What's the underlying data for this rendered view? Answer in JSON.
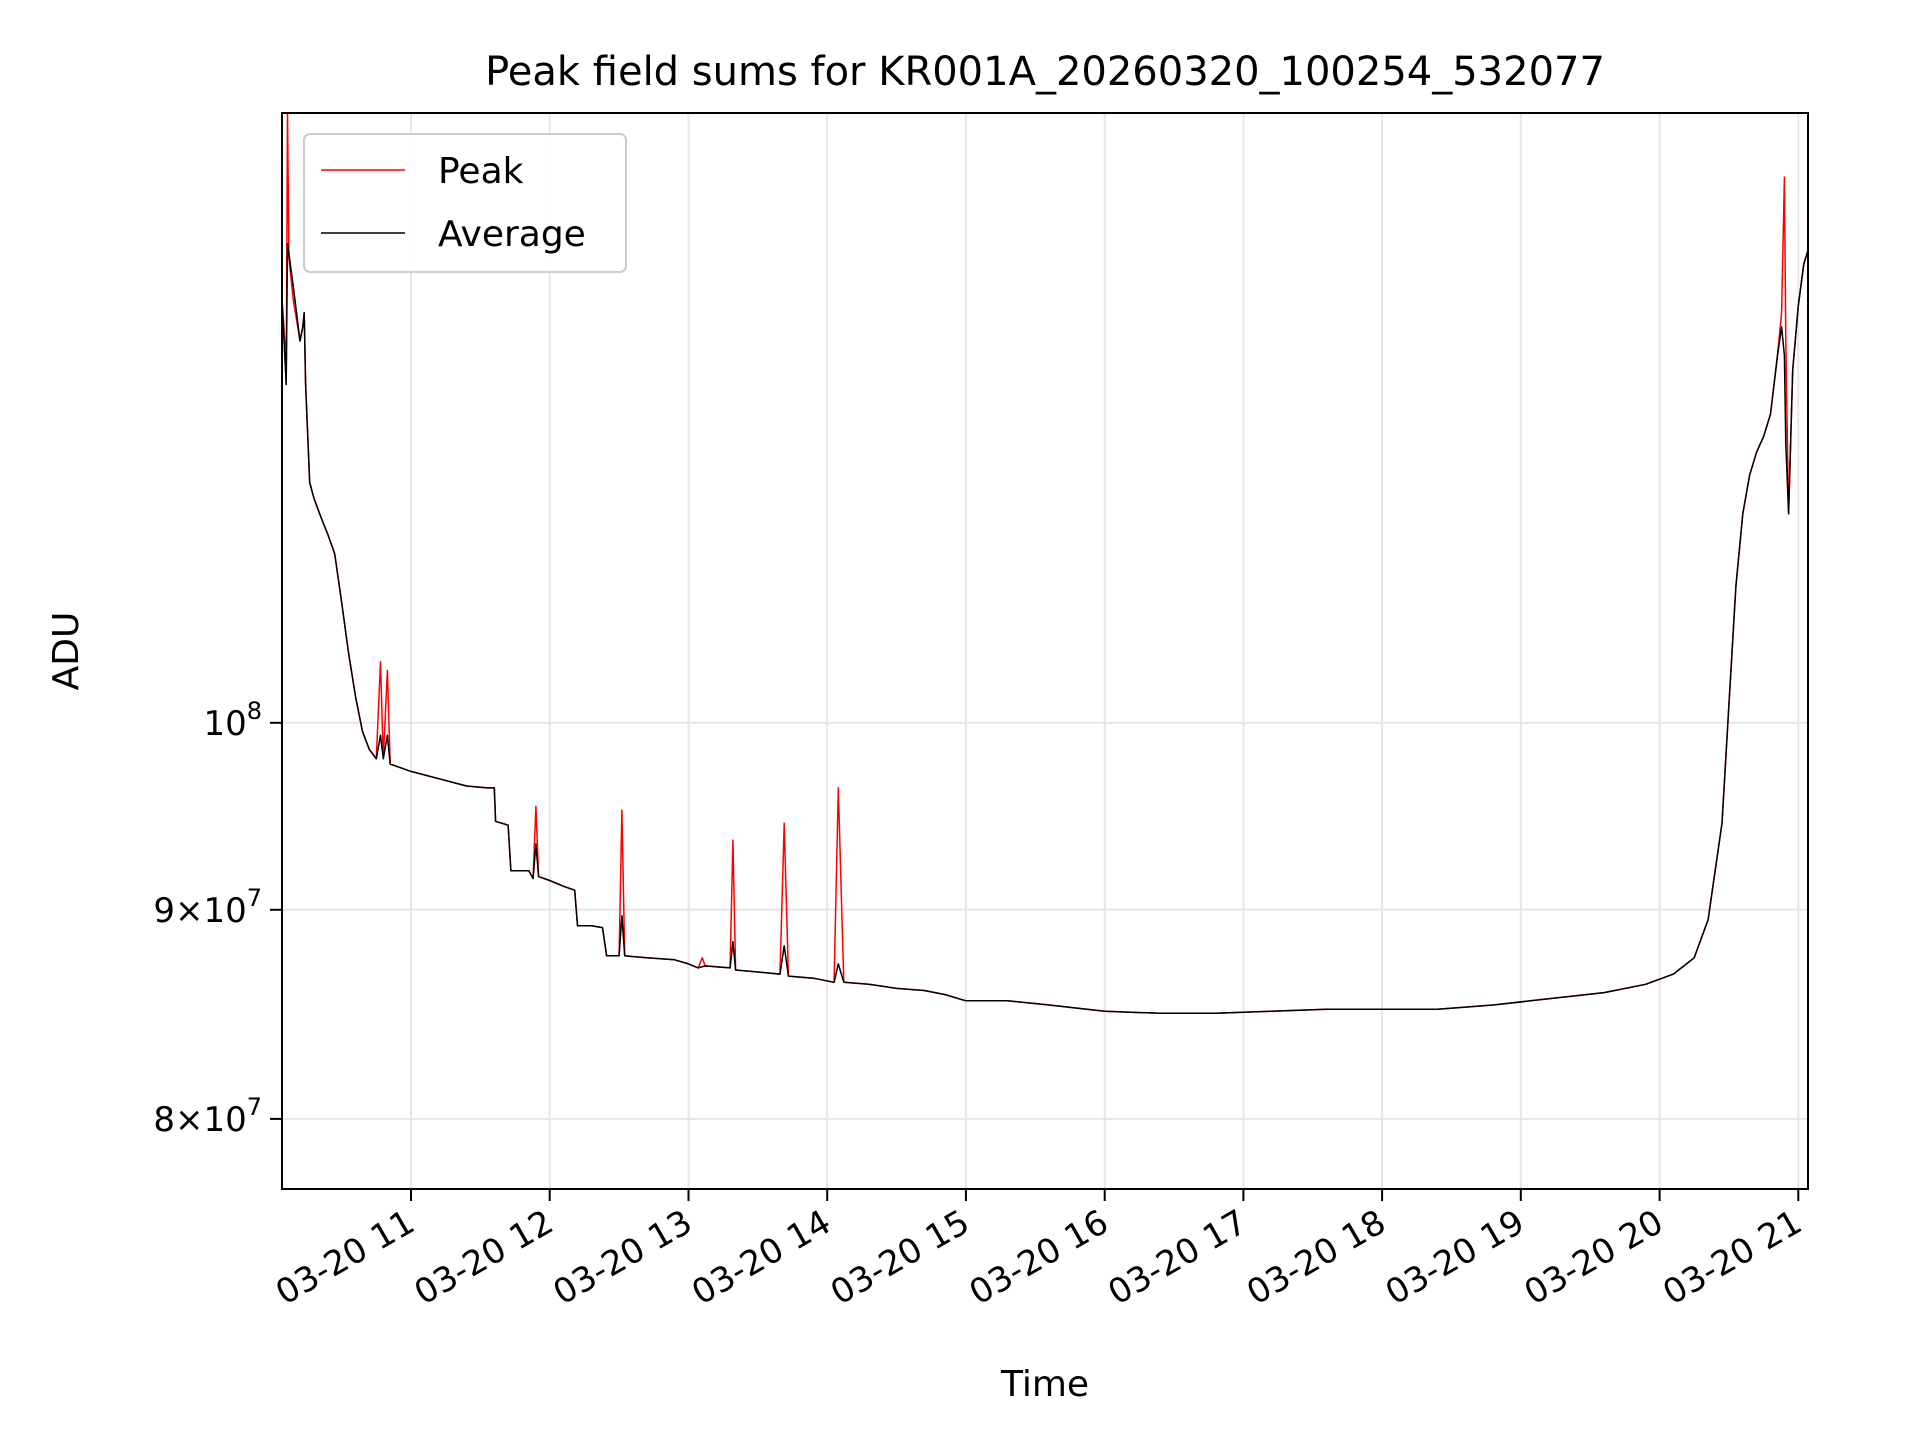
{
  "chart_data": {
    "type": "line",
    "title": "Peak field sums for KR001A_20260320_100254_532077",
    "xlabel": "Time",
    "ylabel": "ADU",
    "y_scale": "log",
    "grid": true,
    "legend_position": "upper-left",
    "xlim": [
      10.07,
      21.07
    ],
    "ylim": [
      76900000,
      141000000
    ],
    "x_unit": "hour of 2026-03-20",
    "x_ticks": [
      {
        "value": 11,
        "label": "03-20 11"
      },
      {
        "value": 12,
        "label": "03-20 12"
      },
      {
        "value": 13,
        "label": "03-20 13"
      },
      {
        "value": 14,
        "label": "03-20 14"
      },
      {
        "value": 15,
        "label": "03-20 15"
      },
      {
        "value": 16,
        "label": "03-20 16"
      },
      {
        "value": 17,
        "label": "03-20 17"
      },
      {
        "value": 18,
        "label": "03-20 18"
      },
      {
        "value": 19,
        "label": "03-20 19"
      },
      {
        "value": 20,
        "label": "03-20 20"
      },
      {
        "value": 21,
        "label": "03-20 21"
      }
    ],
    "y_ticks": [
      {
        "value": 80000000,
        "base": "8",
        "exp": "7"
      },
      {
        "value": 90000000,
        "base": "9",
        "exp": "7"
      },
      {
        "value": 100000000,
        "base": "",
        "exp": "8"
      }
    ],
    "y_tick_mult": "×",
    "y_tick_power_base": "10",
    "series": [
      {
        "name": "Peak",
        "color": "#ff0000",
        "points": [
          [
            10.07,
            127000000
          ],
          [
            10.09,
            124000000
          ],
          [
            10.1,
            121000000
          ],
          [
            10.11,
            141000000
          ],
          [
            10.12,
            130000000
          ],
          [
            10.15,
            127000000
          ],
          [
            10.2,
            124000000
          ],
          [
            10.22,
            125000000
          ],
          [
            10.23,
            126000000
          ],
          [
            10.24,
            121000000
          ],
          [
            10.27,
            114500000
          ],
          [
            10.3,
            113500000
          ],
          [
            10.35,
            112300000
          ],
          [
            10.4,
            111200000
          ],
          [
            10.45,
            110000000
          ],
          [
            10.5,
            107000000
          ],
          [
            10.55,
            104000000
          ],
          [
            10.6,
            101500000
          ],
          [
            10.65,
            99500000
          ],
          [
            10.7,
            98500000
          ],
          [
            10.75,
            98000000
          ],
          [
            10.78,
            103500000
          ],
          [
            10.8,
            98000000
          ],
          [
            10.83,
            103000000
          ],
          [
            10.85,
            97700000
          ],
          [
            11.0,
            97300000
          ],
          [
            11.2,
            96900000
          ],
          [
            11.4,
            96500000
          ],
          [
            11.55,
            96400000
          ],
          [
            11.6,
            96400000
          ],
          [
            11.61,
            94600000
          ],
          [
            11.7,
            94400000
          ],
          [
            11.72,
            92000000
          ],
          [
            11.85,
            92000000
          ],
          [
            11.88,
            91600000
          ],
          [
            11.9,
            95400000
          ],
          [
            11.92,
            91700000
          ],
          [
            12.0,
            91500000
          ],
          [
            12.1,
            91200000
          ],
          [
            12.18,
            91000000
          ],
          [
            12.2,
            89200000
          ],
          [
            12.3,
            89200000
          ],
          [
            12.38,
            89100000
          ],
          [
            12.41,
            87700000
          ],
          [
            12.5,
            87700000
          ],
          [
            12.52,
            95200000
          ],
          [
            12.54,
            87700000
          ],
          [
            12.7,
            87600000
          ],
          [
            12.9,
            87500000
          ],
          [
            13.0,
            87300000
          ],
          [
            13.07,
            87100000
          ],
          [
            13.1,
            87600000
          ],
          [
            13.12,
            87200000
          ],
          [
            13.3,
            87100000
          ],
          [
            13.32,
            93600000
          ],
          [
            13.34,
            87000000
          ],
          [
            13.5,
            86900000
          ],
          [
            13.66,
            86800000
          ],
          [
            13.69,
            94500000
          ],
          [
            13.72,
            86700000
          ],
          [
            13.9,
            86600000
          ],
          [
            14.05,
            86400000
          ],
          [
            14.08,
            96400000
          ],
          [
            14.12,
            86400000
          ],
          [
            14.3,
            86300000
          ],
          [
            14.5,
            86100000
          ],
          [
            14.7,
            86000000
          ],
          [
            14.85,
            85800000
          ],
          [
            15.0,
            85500000
          ],
          [
            15.3,
            85500000
          ],
          [
            15.6,
            85300000
          ],
          [
            16.0,
            85000000
          ],
          [
            16.4,
            84900000
          ],
          [
            16.8,
            84900000
          ],
          [
            17.2,
            85000000
          ],
          [
            17.6,
            85100000
          ],
          [
            18.0,
            85100000
          ],
          [
            18.4,
            85100000
          ],
          [
            18.8,
            85300000
          ],
          [
            19.2,
            85600000
          ],
          [
            19.6,
            85900000
          ],
          [
            19.9,
            86300000
          ],
          [
            20.1,
            86800000
          ],
          [
            20.25,
            87600000
          ],
          [
            20.35,
            89500000
          ],
          [
            20.45,
            94500000
          ],
          [
            20.5,
            101000000
          ],
          [
            20.55,
            108000000
          ],
          [
            20.6,
            112500000
          ],
          [
            20.65,
            115000000
          ],
          [
            20.7,
            116500000
          ],
          [
            20.75,
            117500000
          ],
          [
            20.8,
            119000000
          ],
          [
            20.85,
            123000000
          ],
          [
            20.88,
            126000000
          ],
          [
            20.9,
            136000000
          ],
          [
            20.91,
            124000000
          ],
          [
            20.93,
            112500000
          ],
          [
            20.96,
            122000000
          ],
          [
            21.0,
            126500000
          ],
          [
            21.04,
            129500000
          ],
          [
            21.07,
            130500000
          ]
        ]
      },
      {
        "name": "Average",
        "color": "#000000",
        "points": [
          [
            10.07,
            127000000
          ],
          [
            10.1,
            121000000
          ],
          [
            10.11,
            131000000
          ],
          [
            10.15,
            128000000
          ],
          [
            10.2,
            124000000
          ],
          [
            10.22,
            125000000
          ],
          [
            10.23,
            126000000
          ],
          [
            10.24,
            121000000
          ],
          [
            10.27,
            114500000
          ],
          [
            10.3,
            113500000
          ],
          [
            10.35,
            112300000
          ],
          [
            10.4,
            111200000
          ],
          [
            10.45,
            110000000
          ],
          [
            10.5,
            107000000
          ],
          [
            10.55,
            104000000
          ],
          [
            10.6,
            101500000
          ],
          [
            10.65,
            99500000
          ],
          [
            10.7,
            98500000
          ],
          [
            10.75,
            98000000
          ],
          [
            10.78,
            99300000
          ],
          [
            10.8,
            98000000
          ],
          [
            10.83,
            99300000
          ],
          [
            10.85,
            97700000
          ],
          [
            11.0,
            97300000
          ],
          [
            11.2,
            96900000
          ],
          [
            11.4,
            96500000
          ],
          [
            11.55,
            96400000
          ],
          [
            11.6,
            96400000
          ],
          [
            11.61,
            94600000
          ],
          [
            11.7,
            94400000
          ],
          [
            11.72,
            92000000
          ],
          [
            11.85,
            92000000
          ],
          [
            11.88,
            91600000
          ],
          [
            11.9,
            93400000
          ],
          [
            11.92,
            91700000
          ],
          [
            12.0,
            91500000
          ],
          [
            12.1,
            91200000
          ],
          [
            12.18,
            91000000
          ],
          [
            12.2,
            89200000
          ],
          [
            12.3,
            89200000
          ],
          [
            12.38,
            89100000
          ],
          [
            12.41,
            87700000
          ],
          [
            12.5,
            87700000
          ],
          [
            12.52,
            89700000
          ],
          [
            12.54,
            87700000
          ],
          [
            12.7,
            87600000
          ],
          [
            12.9,
            87500000
          ],
          [
            13.0,
            87300000
          ],
          [
            13.07,
            87100000
          ],
          [
            13.12,
            87200000
          ],
          [
            13.3,
            87100000
          ],
          [
            13.32,
            88400000
          ],
          [
            13.34,
            87000000
          ],
          [
            13.5,
            86900000
          ],
          [
            13.66,
            86800000
          ],
          [
            13.69,
            88200000
          ],
          [
            13.72,
            86700000
          ],
          [
            13.9,
            86600000
          ],
          [
            14.05,
            86400000
          ],
          [
            14.08,
            87300000
          ],
          [
            14.12,
            86400000
          ],
          [
            14.3,
            86300000
          ],
          [
            14.5,
            86100000
          ],
          [
            14.7,
            86000000
          ],
          [
            14.85,
            85800000
          ],
          [
            15.0,
            85500000
          ],
          [
            15.3,
            85500000
          ],
          [
            15.6,
            85300000
          ],
          [
            16.0,
            85000000
          ],
          [
            16.4,
            84900000
          ],
          [
            16.8,
            84900000
          ],
          [
            17.2,
            85000000
          ],
          [
            17.6,
            85100000
          ],
          [
            18.0,
            85100000
          ],
          [
            18.4,
            85100000
          ],
          [
            18.8,
            85300000
          ],
          [
            19.2,
            85600000
          ],
          [
            19.6,
            85900000
          ],
          [
            19.9,
            86300000
          ],
          [
            20.1,
            86800000
          ],
          [
            20.25,
            87600000
          ],
          [
            20.35,
            89500000
          ],
          [
            20.45,
            94500000
          ],
          [
            20.5,
            101000000
          ],
          [
            20.55,
            108000000
          ],
          [
            20.6,
            112500000
          ],
          [
            20.65,
            115000000
          ],
          [
            20.7,
            116500000
          ],
          [
            20.75,
            117500000
          ],
          [
            20.8,
            119000000
          ],
          [
            20.85,
            123000000
          ],
          [
            20.88,
            125000000
          ],
          [
            20.9,
            123000000
          ],
          [
            20.91,
            117000000
          ],
          [
            20.93,
            112500000
          ],
          [
            20.96,
            122000000
          ],
          [
            21.0,
            126500000
          ],
          [
            21.04,
            129500000
          ],
          [
            21.07,
            130500000
          ]
        ]
      }
    ]
  }
}
